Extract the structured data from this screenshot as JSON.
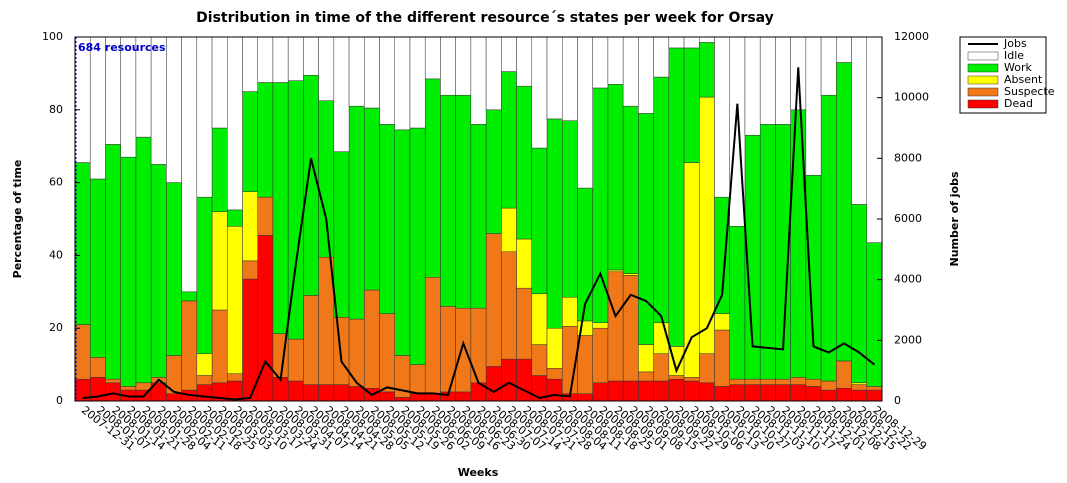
{
  "chart_data": {
    "type": "stacked_bar_line",
    "title": "Distribution in time of the different resource´s states per week for Orsay",
    "x_label": "Weeks",
    "y_label": "Percentage of time",
    "y2_label": "Number of jobs",
    "annotation": "684 resources",
    "categories": [
      "2007-12-31",
      "2008-01-07",
      "2008-01-14",
      "2008-01-21",
      "2008-01-28",
      "2008-02-04",
      "2008-02-11",
      "2008-02-18",
      "2008-02-25",
      "2008-03-03",
      "2008-03-10",
      "2008-03-17",
      "2008-03-24",
      "2008-03-31",
      "2008-04-07",
      "2008-04-14",
      "2008-04-21",
      "2008-04-28",
      "2008-05-05",
      "2008-05-12",
      "2008-05-19",
      "2008-05-26",
      "2008-06-02",
      "2008-06-09",
      "2008-06-16",
      "2008-06-23",
      "2008-06-30",
      "2008-07-07",
      "2008-07-14",
      "2008-07-21",
      "2008-07-28",
      "2008-08-04",
      "2008-08-11",
      "2008-08-18",
      "2008-08-25",
      "2008-09-01",
      "2008-09-08",
      "2008-09-15",
      "2008-09-22",
      "2008-09-29",
      "2008-10-06",
      "2008-10-13",
      "2008-10-20",
      "2008-10-27",
      "2008-11-03",
      "2008-11-10",
      "2008-11-17",
      "2008-11-24",
      "2008-12-01",
      "2008-12-08",
      "2008-12-15",
      "2008-12-22",
      "2008-12-29"
    ],
    "series": [
      {
        "name": "Dead",
        "color": "#ff0000",
        "values": [
          6,
          6.5,
          5,
          3,
          3,
          5,
          2,
          3,
          4.5,
          5,
          5.5,
          33.5,
          45.5,
          6.5,
          5.5,
          4.5,
          4.5,
          4.5,
          4,
          3.5,
          2.5,
          1,
          2,
          2,
          2.5,
          2.5,
          5,
          9.5,
          11.5,
          11.5,
          7,
          6,
          2,
          2,
          5,
          5.5,
          5.5,
          5.5,
          5.5,
          6,
          5.5,
          5,
          4,
          4.5,
          4.5,
          4.5,
          4.5,
          4.5,
          4,
          3,
          3.5,
          3,
          3
        ]
      },
      {
        "name": "Suspecte",
        "color": "#f07818",
        "values": [
          15,
          5.5,
          1,
          1,
          2,
          1.5,
          10.5,
          24.5,
          2.5,
          20,
          2,
          5,
          10.5,
          12,
          11.5,
          24.5,
          35,
          18.5,
          18.5,
          27,
          21.5,
          11.5,
          8,
          32,
          23.5,
          23,
          20.5,
          36.5,
          29.5,
          19.5,
          8.5,
          3,
          18.5,
          16,
          15,
          30,
          29,
          2.5,
          7.5,
          1,
          1,
          8,
          15.5,
          1.5,
          1.5,
          1.5,
          1.5,
          2,
          2,
          2.5,
          7.5,
          1.5,
          1
        ]
      },
      {
        "name": "Absent",
        "color": "#ffff00",
        "values": [
          0,
          0,
          0,
          0,
          0,
          0,
          0,
          0,
          6,
          27,
          40.5,
          19,
          0,
          0,
          0,
          0,
          0,
          0,
          0,
          0,
          0,
          0,
          0,
          0,
          0,
          0,
          0,
          0,
          12,
          13.5,
          14,
          11,
          8,
          4,
          1.5,
          0.5,
          0.5,
          7.5,
          8.5,
          8,
          59,
          70.5,
          4.5,
          0,
          0,
          0,
          0,
          0,
          0,
          0,
          0,
          0.5,
          0
        ]
      },
      {
        "name": "Work",
        "color": "#00ee00",
        "values": [
          44.5,
          49,
          64.5,
          63,
          67.5,
          58.5,
          47.5,
          2.5,
          43,
          23,
          4.5,
          27.5,
          31.5,
          69,
          71,
          60.5,
          43,
          45.5,
          58.5,
          50,
          52,
          62,
          65,
          54.5,
          58,
          58.5,
          50.5,
          34,
          37.5,
          42,
          40,
          57.5,
          48.5,
          36.5,
          64.5,
          51,
          46,
          63.5,
          67.5,
          82,
          31.5,
          15,
          32,
          42,
          67,
          70,
          70,
          73.5,
          56,
          78.5,
          82,
          49,
          39.5
        ]
      },
      {
        "name": "Idle",
        "color": "#ffffff",
        "values": [
          34.5,
          39,
          29.5,
          33,
          27.5,
          35,
          40,
          70,
          44,
          25,
          47.5,
          15,
          12.5,
          12.5,
          12,
          10.5,
          17.5,
          31.5,
          19,
          19.5,
          24,
          25.5,
          25,
          11.5,
          16,
          16,
          24,
          20,
          9.5,
          13.5,
          30.5,
          22.5,
          23,
          41.5,
          14,
          13,
          19,
          21,
          11,
          3,
          3,
          1.5,
          44,
          52,
          27,
          24,
          24,
          20,
          38,
          16,
          7,
          46,
          56.5
        ]
      },
      {
        "name": "Jobs",
        "color": "#000000",
        "axis": "y2",
        "values": [
          100,
          150,
          250,
          150,
          150,
          700,
          300,
          200,
          150,
          100,
          50,
          100,
          1300,
          700,
          4500,
          8000,
          6000,
          1300,
          600,
          200,
          450,
          350,
          250,
          250,
          200,
          1900,
          600,
          300,
          600,
          350,
          100,
          200,
          150,
          3200,
          4200,
          2800,
          3500,
          3300,
          2800,
          1000,
          2100,
          2400,
          3500,
          9800,
          1800,
          1750,
          1700,
          11000,
          1800,
          1600,
          1900,
          1600,
          1200
        ]
      }
    ],
    "ylim": [
      0,
      100
    ],
    "yticks": [
      0,
      20,
      40,
      60,
      80,
      100
    ],
    "y2lim": [
      0,
      12000
    ],
    "y2ticks": [
      0,
      2000,
      4000,
      6000,
      8000,
      10000,
      12000
    ]
  }
}
